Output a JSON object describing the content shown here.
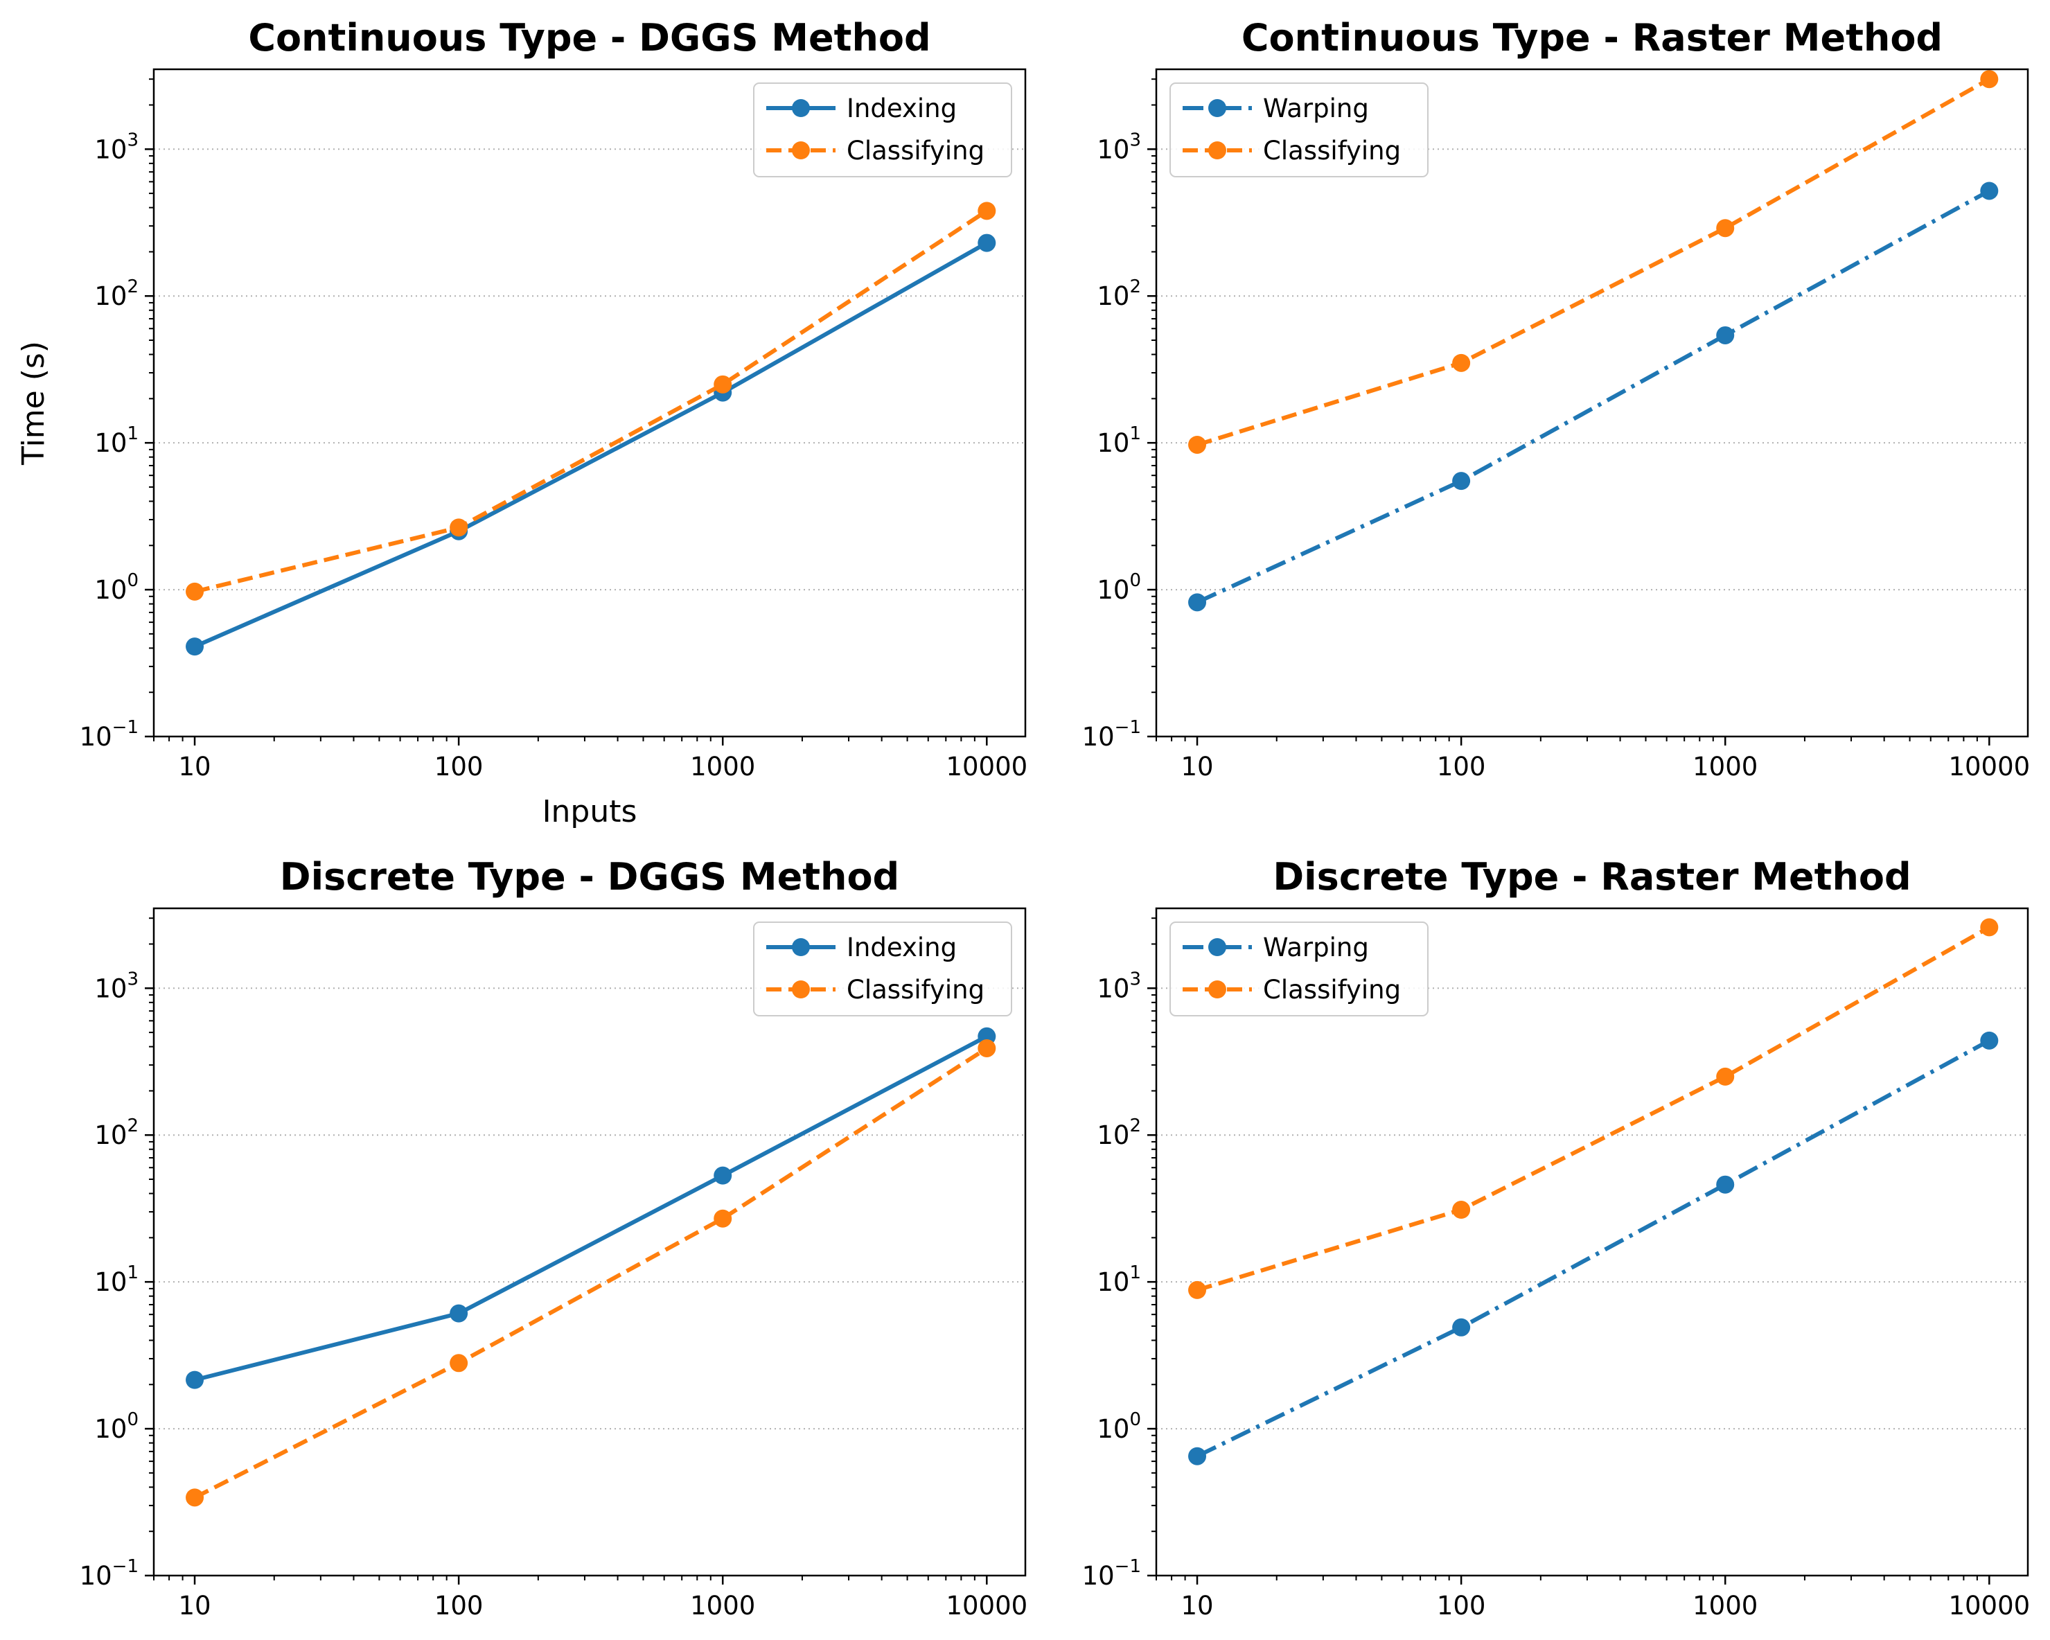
{
  "chart_data": [
    {
      "type": "line",
      "title": "Continuous Type - DGGS Method",
      "xlabel": "Inputs",
      "ylabel": "Time (s)",
      "xscale": "log",
      "yscale": "log",
      "x": [
        10,
        100,
        1000,
        10000
      ],
      "x_tick_labels": [
        "10",
        "100",
        "1000",
        "10000"
      ],
      "y_tick_labels": [
        {
          "base": "10",
          "exp": "−1"
        },
        {
          "base": "10",
          "exp": "0"
        },
        {
          "base": "10",
          "exp": "1"
        },
        {
          "base": "10",
          "exp": "2"
        },
        {
          "base": "10",
          "exp": "3"
        }
      ],
      "ylim": [
        0.1,
        3500
      ],
      "grid": "horizontal dotted at y major ticks",
      "legend": "top-right",
      "series": [
        {
          "name": "Indexing",
          "values": [
            0.41,
            2.5,
            22,
            230
          ],
          "color": "#1f77b4",
          "style": "solid"
        },
        {
          "name": "Classifying",
          "values": [
            0.97,
            2.65,
            25,
            380
          ],
          "color": "#ff7f0e",
          "style": "dashed"
        }
      ]
    },
    {
      "type": "line",
      "title": "Continuous Type - Raster Method",
      "xlabel": "",
      "ylabel": "",
      "xscale": "log",
      "yscale": "log",
      "x": [
        10,
        100,
        1000,
        10000
      ],
      "x_tick_labels": [
        "10",
        "100",
        "1000",
        "10000"
      ],
      "y_tick_labels": [
        {
          "base": "10",
          "exp": "−1"
        },
        {
          "base": "10",
          "exp": "0"
        },
        {
          "base": "10",
          "exp": "1"
        },
        {
          "base": "10",
          "exp": "2"
        },
        {
          "base": "10",
          "exp": "3"
        }
      ],
      "ylim": [
        0.1,
        3500
      ],
      "grid": "horizontal dotted at y major ticks",
      "legend": "top-left",
      "series": [
        {
          "name": "Warping",
          "values": [
            0.82,
            5.5,
            54,
            520
          ],
          "color": "#1f77b4",
          "style": "dashdot"
        },
        {
          "name": "Classifying",
          "values": [
            9.7,
            35,
            290,
            3000
          ],
          "color": "#ff7f0e",
          "style": "dashed"
        }
      ]
    },
    {
      "type": "line",
      "title": "Discrete Type - DGGS Method",
      "xlabel": "",
      "ylabel": "",
      "xscale": "log",
      "yscale": "log",
      "x": [
        10,
        100,
        1000,
        10000
      ],
      "x_tick_labels": [
        "10",
        "100",
        "1000",
        "10000"
      ],
      "y_tick_labels": [
        {
          "base": "10",
          "exp": "−1"
        },
        {
          "base": "10",
          "exp": "0"
        },
        {
          "base": "10",
          "exp": "1"
        },
        {
          "base": "10",
          "exp": "2"
        },
        {
          "base": "10",
          "exp": "3"
        }
      ],
      "ylim": [
        0.1,
        3500
      ],
      "grid": "horizontal dotted at y major ticks",
      "legend": "top-right",
      "series": [
        {
          "name": "Indexing",
          "values": [
            2.15,
            6.1,
            53,
            470
          ],
          "color": "#1f77b4",
          "style": "solid"
        },
        {
          "name": "Classifying",
          "values": [
            0.34,
            2.8,
            27,
            390
          ],
          "color": "#ff7f0e",
          "style": "dashed"
        }
      ]
    },
    {
      "type": "line",
      "title": "Discrete Type - Raster Method",
      "xlabel": "",
      "ylabel": "",
      "xscale": "log",
      "yscale": "log",
      "x": [
        10,
        100,
        1000,
        10000
      ],
      "x_tick_labels": [
        "10",
        "100",
        "1000",
        "10000"
      ],
      "y_tick_labels": [
        {
          "base": "10",
          "exp": "−1"
        },
        {
          "base": "10",
          "exp": "0"
        },
        {
          "base": "10",
          "exp": "1"
        },
        {
          "base": "10",
          "exp": "2"
        },
        {
          "base": "10",
          "exp": "3"
        }
      ],
      "ylim": [
        0.1,
        3500
      ],
      "grid": "horizontal dotted at y major ticks",
      "legend": "top-left",
      "series": [
        {
          "name": "Warping",
          "values": [
            0.65,
            4.9,
            46,
            440
          ],
          "color": "#1f77b4",
          "style": "dashdot"
        },
        {
          "name": "Classifying",
          "values": [
            8.8,
            31,
            250,
            2600
          ],
          "color": "#ff7f0e",
          "style": "dashed"
        }
      ]
    }
  ]
}
